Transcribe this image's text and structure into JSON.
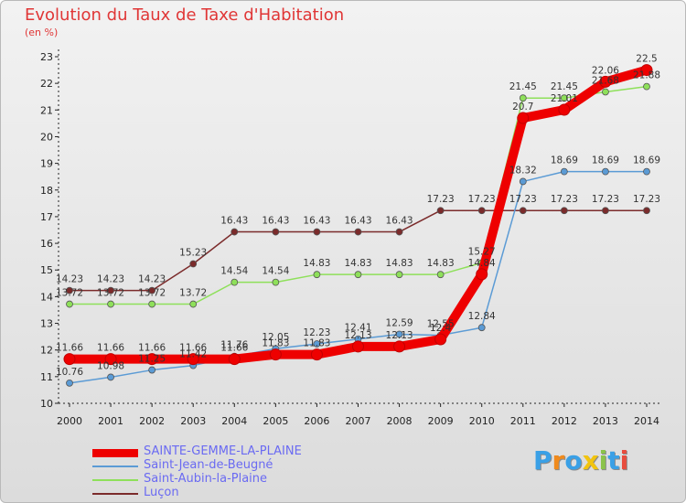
{
  "title": "Evolution du Taux de Taxe d'Habitation",
  "unit": "(en %)",
  "logo": "Proxiti",
  "chart_data": {
    "type": "line",
    "title": "Evolution du Taux de Taxe d'Habitation",
    "ylabel": "(en %)",
    "xlabel": "",
    "ylim": [
      10,
      23
    ],
    "grid": false,
    "legend_position": "bottom-left",
    "categories": [
      "2000",
      "2001",
      "2002",
      "2003",
      "2004",
      "2005",
      "2006",
      "2007",
      "2008",
      "2009",
      "2010",
      "2011",
      "2012",
      "2013",
      "2014"
    ],
    "yticks": [
      "10",
      "11",
      "12",
      "13",
      "14",
      "15",
      "16",
      "17",
      "18",
      "19",
      "20",
      "21",
      "22",
      "23"
    ],
    "series": [
      {
        "name": "Luçon",
        "color": "#7b2b2b",
        "values": [
          14.23,
          14.23,
          14.23,
          15.23,
          16.43,
          16.43,
          16.43,
          16.43,
          16.43,
          17.23,
          17.23,
          17.23,
          17.23,
          17.23,
          17.23
        ],
        "labels": [
          "14.23",
          "14.23",
          "14.23",
          "15.23",
          "16.43",
          "16.43",
          "16.43",
          "16.43",
          "16.43",
          "17.23",
          "17.23",
          "17.23",
          "17.23",
          "17.23",
          "17.23"
        ]
      },
      {
        "name": "Saint-Aubin-la-Plaine",
        "color": "#8ee05a",
        "values": [
          13.72,
          13.72,
          13.72,
          13.72,
          14.54,
          14.54,
          14.83,
          14.83,
          14.83,
          14.83,
          15.27,
          21.45,
          21.45,
          21.68,
          21.88
        ],
        "labels": [
          "13.72",
          "13.72",
          "13.72",
          "13.72",
          "14.54",
          "14.54",
          "14.83",
          "14.83",
          "14.83",
          "14.83",
          "15.27",
          "21.45",
          "21.45",
          "21.68",
          "21.88"
        ]
      },
      {
        "name": "Saint-Jean-de-Beugné",
        "color": "#5b9bd5",
        "values": [
          10.76,
          10.98,
          11.25,
          11.42,
          11.76,
          12.05,
          12.23,
          12.41,
          12.59,
          12.55,
          12.84,
          18.32,
          18.69,
          18.69,
          18.69
        ],
        "labels": [
          "10.76",
          "10.98",
          "11.25",
          "11.42",
          "11.76",
          "12.05",
          "12.23",
          "12.41",
          "12.59",
          "12.55",
          "12.84",
          "18.32",
          "18.69",
          "18.69",
          "18.69"
        ]
      },
      {
        "name": "SAINTE-GEMME-LA-PLAINE",
        "color": "#ee0000",
        "values": [
          11.66,
          11.66,
          11.66,
          11.66,
          11.66,
          11.83,
          11.83,
          12.13,
          12.13,
          12.4,
          14.84,
          20.7,
          21.01,
          22.06,
          22.5
        ],
        "labels": [
          "11.66",
          "11.66",
          "11.66",
          "11.66",
          "11.66",
          "11.83",
          "11.83",
          "12.13",
          "12.13",
          "12.4",
          "14.84",
          "20.7",
          "21.01",
          "22.06",
          "22.5"
        ]
      }
    ]
  },
  "legend": [
    {
      "name": "SAINTE-GEMME-LA-PLAINE",
      "color": "#ee0000",
      "thickness": 9
    },
    {
      "name": "Saint-Jean-de-Beugné",
      "color": "#5b9bd5",
      "thickness": 2
    },
    {
      "name": "Saint-Aubin-la-Plaine",
      "color": "#8ee05a",
      "thickness": 2
    },
    {
      "name": "Luçon",
      "color": "#7b2b2b",
      "thickness": 2
    }
  ]
}
